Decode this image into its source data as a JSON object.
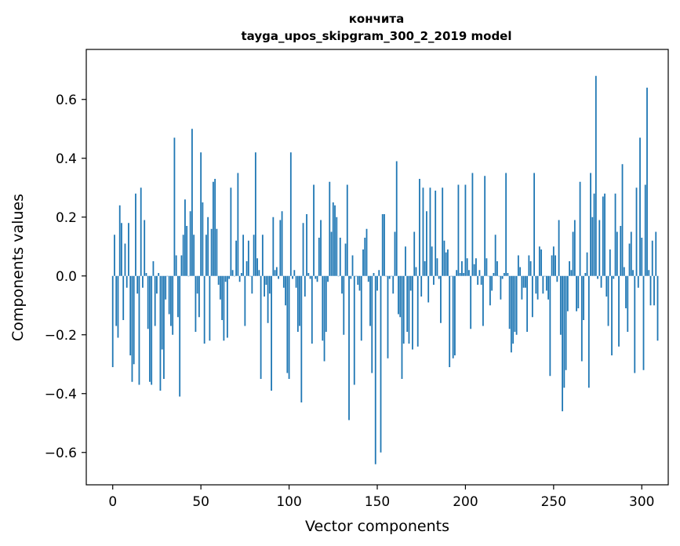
{
  "chart_data": {
    "type": "bar",
    "title": "кончита",
    "subtitle": "tayga_upos_skipgram_300_2_2019 model",
    "xlabel": "Vector components",
    "ylabel": "Components values",
    "xlim": [
      -15,
      315
    ],
    "ylim": [
      -0.71,
      0.77
    ],
    "xticks": [
      0,
      50,
      100,
      150,
      200,
      250,
      300
    ],
    "yticks": [
      -0.6,
      -0.4,
      -0.2,
      0.0,
      0.2,
      0.4,
      0.6
    ],
    "ytick_labels": [
      "−0.6",
      "−0.4",
      "−0.2",
      "0.0",
      "0.2",
      "0.4",
      "0.6"
    ],
    "bar_color": "#1f77b4",
    "grid": false,
    "values": [
      -0.31,
      0.14,
      -0.17,
      -0.21,
      0.24,
      0.18,
      -0.15,
      0.11,
      -0.04,
      0.18,
      -0.27,
      -0.36,
      -0.3,
      0.28,
      -0.06,
      -0.37,
      0.3,
      -0.04,
      0.19,
      0.01,
      -0.18,
      -0.36,
      -0.37,
      0.05,
      -0.17,
      -0.06,
      0.01,
      -0.39,
      -0.25,
      -0.35,
      -0.08,
      0.0,
      -0.13,
      -0.17,
      -0.2,
      0.47,
      0.07,
      -0.14,
      -0.41,
      0.07,
      0.14,
      0.26,
      0.17,
      0.0,
      0.22,
      0.5,
      0.14,
      -0.19,
      -0.06,
      -0.14,
      0.42,
      0.25,
      -0.23,
      0.14,
      0.2,
      -0.22,
      0.16,
      0.32,
      0.33,
      0.16,
      -0.03,
      -0.08,
      -0.15,
      -0.22,
      -0.02,
      -0.21,
      -0.01,
      0.3,
      0.02,
      0.0,
      0.12,
      0.35,
      -0.02,
      0.01,
      0.14,
      -0.17,
      0.05,
      0.12,
      0.0,
      -0.06,
      0.14,
      0.42,
      0.06,
      0.02,
      -0.35,
      0.14,
      -0.07,
      -0.03,
      -0.16,
      -0.06,
      -0.39,
      0.2,
      0.02,
      0.03,
      -0.01,
      0.19,
      0.22,
      -0.04,
      -0.1,
      -0.33,
      -0.35,
      0.42,
      -0.01,
      0.02,
      -0.04,
      -0.19,
      -0.17,
      -0.43,
      0.18,
      -0.07,
      0.21,
      0.01,
      -0.01,
      -0.23,
      0.31,
      -0.01,
      -0.02,
      0.13,
      0.19,
      -0.22,
      -0.29,
      -0.19,
      -0.02,
      0.32,
      0.15,
      0.25,
      0.24,
      0.2,
      0.0,
      0.13,
      -0.06,
      -0.2,
      0.11,
      0.31,
      -0.49,
      -0.01,
      0.07,
      -0.37,
      0.0,
      -0.03,
      -0.05,
      -0.22,
      0.09,
      0.13,
      0.16,
      -0.02,
      -0.17,
      -0.33,
      0.01,
      -0.64,
      -0.05,
      0.02,
      -0.6,
      0.21,
      0.21,
      0.0,
      -0.28,
      -0.01,
      0.0,
      -0.06,
      0.15,
      0.39,
      -0.13,
      -0.14,
      -0.35,
      -0.23,
      0.1,
      -0.19,
      -0.23,
      -0.05,
      -0.25,
      0.15,
      0.03,
      -0.24,
      0.33,
      -0.07,
      0.3,
      0.05,
      0.22,
      -0.09,
      0.3,
      0.1,
      -0.03,
      0.29,
      0.06,
      -0.01,
      -0.16,
      0.3,
      0.12,
      0.08,
      0.09,
      -0.31,
      0.0,
      -0.28,
      -0.27,
      0.02,
      0.31,
      0.01,
      0.05,
      0.01,
      0.31,
      0.06,
      0.02,
      -0.18,
      0.35,
      0.04,
      0.06,
      -0.03,
      0.02,
      -0.03,
      -0.17,
      0.34,
      0.06,
      0.0,
      -0.1,
      -0.05,
      0.01,
      0.14,
      0.05,
      0.0,
      -0.08,
      -0.01,
      0.01,
      0.35,
      0.01,
      -0.18,
      -0.26,
      -0.23,
      -0.19,
      -0.2,
      0.07,
      0.03,
      -0.08,
      -0.04,
      -0.04,
      -0.19,
      0.07,
      0.05,
      -0.14,
      0.35,
      -0.06,
      -0.08,
      0.1,
      0.09,
      -0.06,
      0.0,
      -0.05,
      -0.08,
      -0.34,
      0.07,
      0.1,
      0.07,
      -0.02,
      0.19,
      -0.2,
      -0.46,
      -0.38,
      -0.32,
      -0.12,
      0.05,
      0.02,
      0.15,
      0.19,
      -0.12,
      -0.11,
      0.32,
      -0.29,
      -0.15,
      0.01,
      0.08,
      -0.38,
      0.35,
      0.2,
      0.28,
      0.68,
      -0.01,
      0.19,
      -0.04,
      0.27,
      0.28,
      -0.07,
      -0.17,
      0.09,
      -0.27,
      -0.01,
      0.28,
      0.15,
      -0.24,
      0.17,
      0.38,
      0.03,
      -0.11,
      -0.19,
      0.11,
      0.15,
      0.02,
      -0.33,
      0.3,
      -0.04,
      0.47,
      0.13,
      -0.32,
      0.31,
      0.64,
      0.02,
      -0.1,
      0.12,
      -0.1,
      0.15,
      -0.22
    ]
  }
}
